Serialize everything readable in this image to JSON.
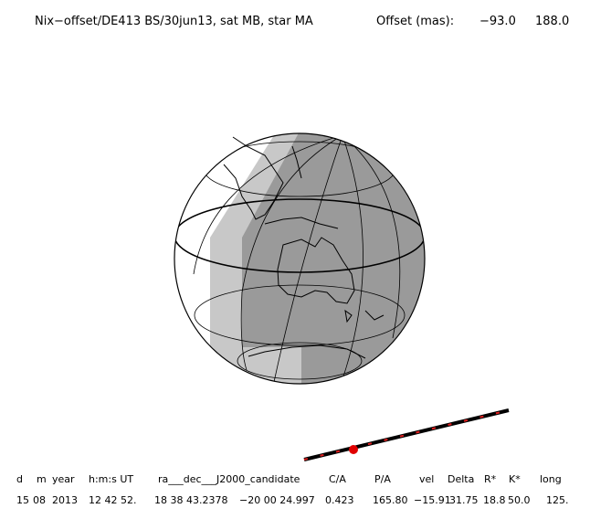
{
  "header": {
    "title": "Nix−offset/DE413 BS/30jun13, sat MB, star MA",
    "offset_label": "Offset (mas):",
    "offset_values": [
      "−93.0",
      "188.0"
    ]
  },
  "table": {
    "columns": [
      "d",
      "m",
      "year",
      "h:m:s UT",
      "ra___dec___J2000_candidate",
      "C/A",
      "P/A",
      "vel",
      "Delta",
      "R*",
      "K*",
      "long"
    ],
    "values": [
      "15",
      "08",
      "2013",
      "12 42 52.",
      "18 38 43.2378",
      "−20 00 24.997",
      "0.423",
      "165.80",
      "−15.91",
      "31.75",
      "18.8",
      "50.0",
      "125."
    ]
  }
}
